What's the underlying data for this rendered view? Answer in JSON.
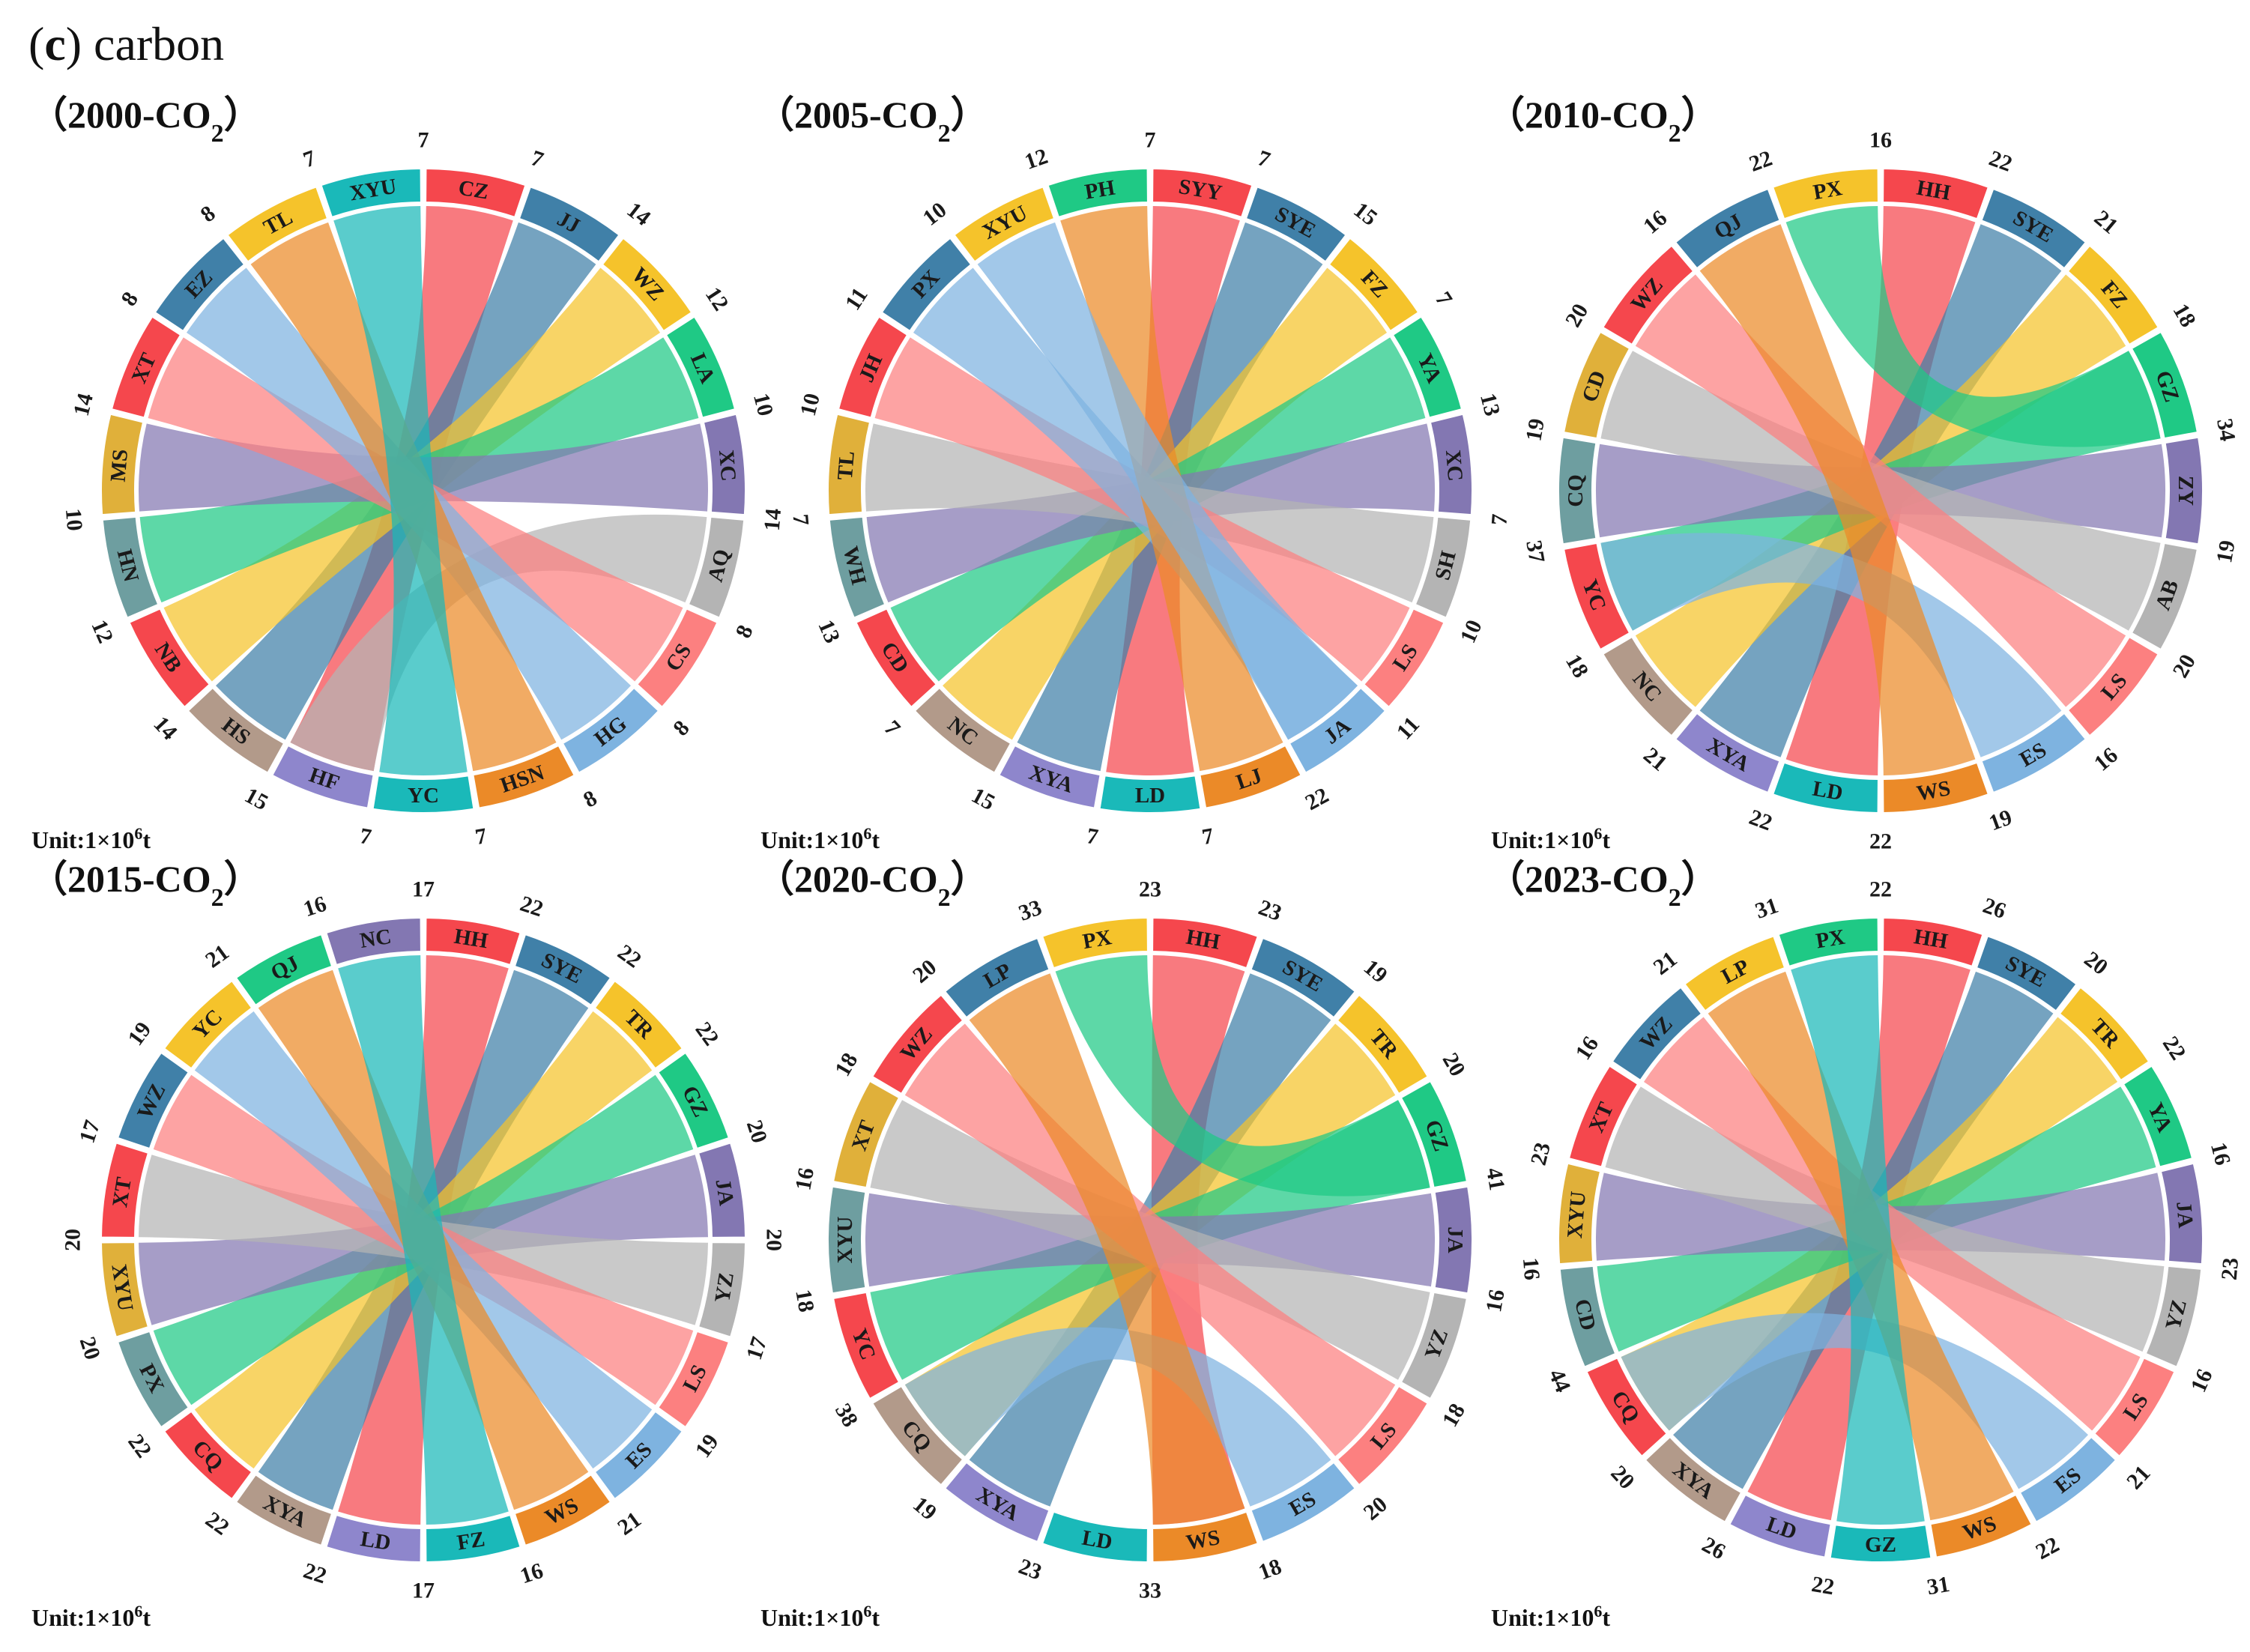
{
  "figure": {
    "label": "c",
    "title": "carbon"
  },
  "colors": {
    "red": "#f5474d",
    "blue": "#4080a8",
    "yellow": "#f5c32b",
    "green": "#1fc985",
    "purple": "#8377b2",
    "gray": "#b4b4b4",
    "pink": "#fc8080",
    "lightblue": "#7eb3e0",
    "orange": "#eb8a28",
    "teal": "#1ab9b9",
    "mustard": "#e0b03a",
    "slate": "#6e9ea0",
    "taupe": "#b29a8a",
    "lavender": "#8e86cc"
  },
  "chart_data": [
    {
      "type": "chord",
      "year": "2000",
      "title_main": "（2000-CO",
      "title_sub": "2",
      "title_close": "）",
      "unit_main": "Unit:1×10",
      "unit_sup": "6",
      "unit_tail": "t",
      "segments": [
        {
          "label": "CZ",
          "value": 7,
          "color": "red"
        },
        {
          "label": "JJ",
          "value": 14,
          "color": "blue"
        },
        {
          "label": "WZ",
          "value": 12,
          "color": "yellow"
        },
        {
          "label": "LA",
          "value": 10,
          "color": "green"
        },
        {
          "label": "XC",
          "value": 14,
          "color": "purple"
        },
        {
          "label": "AQ",
          "value": 8,
          "color": "gray"
        },
        {
          "label": "CS",
          "value": 8,
          "color": "pink"
        },
        {
          "label": "HG",
          "value": 8,
          "color": "lightblue"
        },
        {
          "label": "HSN",
          "value": 7,
          "color": "orange"
        },
        {
          "label": "YC",
          "value": 7,
          "color": "teal"
        },
        {
          "label": "HF",
          "value": 15,
          "color": "lavender"
        },
        {
          "label": "HS",
          "value": 14,
          "color": "taupe"
        },
        {
          "label": "NB",
          "value": 12,
          "color": "red"
        },
        {
          "label": "HN",
          "value": 10,
          "color": "slate"
        },
        {
          "label": "MS",
          "value": 14,
          "color": "mustard"
        },
        {
          "label": "XT",
          "value": 8,
          "color": "red"
        },
        {
          "label": "EZ",
          "value": 8,
          "color": "blue"
        },
        {
          "label": "TL",
          "value": 7,
          "color": "yellow"
        },
        {
          "label": "XYU",
          "value": 7,
          "color": "teal"
        }
      ],
      "links": [
        {
          "from": "CZ",
          "to": "HF",
          "color": "red"
        },
        {
          "from": "JJ",
          "to": "HS",
          "color": "blue"
        },
        {
          "from": "WZ",
          "to": "NB",
          "color": "yellow"
        },
        {
          "from": "LA",
          "to": "HN",
          "color": "green"
        },
        {
          "from": "XC",
          "to": "MS",
          "color": "purple"
        },
        {
          "from": "AQ",
          "to": "HF",
          "color": "gray"
        },
        {
          "from": "CS",
          "to": "XT",
          "color": "pink"
        },
        {
          "from": "HG",
          "to": "EZ",
          "color": "lightblue"
        },
        {
          "from": "HSN",
          "to": "TL",
          "color": "orange"
        },
        {
          "from": "YC",
          "to": "XYU",
          "color": "teal"
        }
      ]
    },
    {
      "type": "chord",
      "year": "2005",
      "title_main": "（2005-CO",
      "title_sub": "2",
      "title_close": "）",
      "unit_main": "Unit:1×10",
      "unit_sup": "6",
      "unit_tail": "t",
      "segments": [
        {
          "label": "SYY",
          "value": 7,
          "color": "red"
        },
        {
          "label": "SYE",
          "value": 15,
          "color": "blue"
        },
        {
          "label": "FZ",
          "value": 7,
          "color": "yellow"
        },
        {
          "label": "YA",
          "value": 13,
          "color": "green"
        },
        {
          "label": "XC",
          "value": 7,
          "color": "purple"
        },
        {
          "label": "SH",
          "value": 10,
          "color": "gray"
        },
        {
          "label": "LS",
          "value": 11,
          "color": "pink"
        },
        {
          "label": "JA",
          "value": 22,
          "color": "lightblue"
        },
        {
          "label": "LJ",
          "value": 7,
          "color": "orange"
        },
        {
          "label": "LD",
          "value": 7,
          "color": "teal"
        },
        {
          "label": "XYA",
          "value": 15,
          "color": "lavender"
        },
        {
          "label": "NC",
          "value": 7,
          "color": "taupe"
        },
        {
          "label": "CD",
          "value": 13,
          "color": "red"
        },
        {
          "label": "WH",
          "value": 7,
          "color": "slate"
        },
        {
          "label": "TL",
          "value": 10,
          "color": "mustard"
        },
        {
          "label": "JH",
          "value": 11,
          "color": "red"
        },
        {
          "label": "PX",
          "value": 10,
          "color": "blue"
        },
        {
          "label": "XYU",
          "value": 12,
          "color": "yellow"
        },
        {
          "label": "PH",
          "value": 7,
          "color": "green"
        }
      ],
      "links": [
        {
          "from": "SYY",
          "to": "LD",
          "color": "red"
        },
        {
          "from": "SYE",
          "to": "XYA",
          "color": "blue"
        },
        {
          "from": "FZ",
          "to": "NC",
          "color": "yellow"
        },
        {
          "from": "YA",
          "to": "CD",
          "color": "green"
        },
        {
          "from": "XC",
          "to": "WH",
          "color": "purple"
        },
        {
          "from": "SH",
          "to": "TL",
          "color": "gray"
        },
        {
          "from": "LS",
          "to": "JH",
          "color": "pink"
        },
        {
          "from": "JA",
          "to": "PX",
          "color": "lightblue"
        },
        {
          "from": "LJ",
          "to": "PH",
          "color": "orange"
        },
        {
          "from": "JA",
          "to": "XYU",
          "color": "lightblue"
        }
      ]
    },
    {
      "type": "chord",
      "year": "2010",
      "title_main": "（2010-CO",
      "title_sub": "2",
      "title_close": "）",
      "unit_main": "Unit:1×10",
      "unit_sup": "6",
      "unit_tail": "t",
      "segments": [
        {
          "label": "HH",
          "value": 22,
          "color": "red"
        },
        {
          "label": "SYE",
          "value": 21,
          "color": "blue"
        },
        {
          "label": "FZ",
          "value": 18,
          "color": "yellow"
        },
        {
          "label": "GZ",
          "value": 34,
          "color": "green"
        },
        {
          "label": "ZY",
          "value": 19,
          "color": "purple"
        },
        {
          "label": "AB",
          "value": 20,
          "color": "gray"
        },
        {
          "label": "LS",
          "value": 16,
          "color": "pink"
        },
        {
          "label": "ES",
          "value": 19,
          "color": "lightblue"
        },
        {
          "label": "WS",
          "value": 22,
          "color": "orange"
        },
        {
          "label": "LD",
          "value": 22,
          "color": "teal"
        },
        {
          "label": "XYA",
          "value": 21,
          "color": "lavender"
        },
        {
          "label": "NC",
          "value": 18,
          "color": "taupe"
        },
        {
          "label": "YC",
          "value": 37,
          "color": "red"
        },
        {
          "label": "CQ",
          "value": 19,
          "color": "slate"
        },
        {
          "label": "CD",
          "value": 20,
          "color": "mustard"
        },
        {
          "label": "WZ",
          "value": 16,
          "color": "red"
        },
        {
          "label": "QJ",
          "value": 22,
          "color": "blue"
        },
        {
          "label": "PX",
          "value": 16,
          "color": "yellow"
        }
      ],
      "links": [
        {
          "from": "HH",
          "to": "LD",
          "color": "red"
        },
        {
          "from": "SYE",
          "to": "XYA",
          "color": "blue"
        },
        {
          "from": "FZ",
          "to": "NC",
          "color": "yellow"
        },
        {
          "from": "GZ",
          "to": "YC",
          "color": "green"
        },
        {
          "from": "ZY",
          "to": "CQ",
          "color": "purple"
        },
        {
          "from": "AB",
          "to": "CD",
          "color": "gray"
        },
        {
          "from": "LS",
          "to": "WZ",
          "color": "pink"
        },
        {
          "from": "ES",
          "to": "YC",
          "color": "lightblue"
        },
        {
          "from": "WS",
          "to": "QJ",
          "color": "orange"
        },
        {
          "from": "PX",
          "to": "GZ",
          "color": "green"
        }
      ]
    },
    {
      "type": "chord",
      "year": "2015",
      "title_main": "（2015-CO",
      "title_sub": "2",
      "title_close": "）",
      "unit_main": "Unit:1×10",
      "unit_sup": "6",
      "unit_tail": "t",
      "segments": [
        {
          "label": "HH",
          "value": 22,
          "color": "red"
        },
        {
          "label": "SYE",
          "value": 22,
          "color": "blue"
        },
        {
          "label": "TR",
          "value": 22,
          "color": "yellow"
        },
        {
          "label": "GZ",
          "value": 20,
          "color": "green"
        },
        {
          "label": "JA",
          "value": 20,
          "color": "purple"
        },
        {
          "label": "YZ",
          "value": 17,
          "color": "gray"
        },
        {
          "label": "LS",
          "value": 19,
          "color": "pink"
        },
        {
          "label": "ES",
          "value": 21,
          "color": "lightblue"
        },
        {
          "label": "WS",
          "value": 16,
          "color": "orange"
        },
        {
          "label": "FZ",
          "value": 17,
          "color": "teal"
        },
        {
          "label": "LD",
          "value": 22,
          "color": "lavender"
        },
        {
          "label": "XYA",
          "value": 22,
          "color": "taupe"
        },
        {
          "label": "CQ",
          "value": 22,
          "color": "red"
        },
        {
          "label": "PX",
          "value": 20,
          "color": "slate"
        },
        {
          "label": "XYU",
          "value": 20,
          "color": "mustard"
        },
        {
          "label": "XT",
          "value": 17,
          "color": "red"
        },
        {
          "label": "WZ",
          "value": 19,
          "color": "blue"
        },
        {
          "label": "YC",
          "value": 21,
          "color": "yellow"
        },
        {
          "label": "QJ",
          "value": 16,
          "color": "green"
        },
        {
          "label": "NC",
          "value": 17,
          "color": "purple"
        }
      ],
      "links": [
        {
          "from": "HH",
          "to": "LD",
          "color": "red"
        },
        {
          "from": "SYE",
          "to": "XYA",
          "color": "blue"
        },
        {
          "from": "TR",
          "to": "CQ",
          "color": "yellow"
        },
        {
          "from": "GZ",
          "to": "PX",
          "color": "green"
        },
        {
          "from": "JA",
          "to": "XYU",
          "color": "purple"
        },
        {
          "from": "YZ",
          "to": "XT",
          "color": "gray"
        },
        {
          "from": "LS",
          "to": "WZ",
          "color": "pink"
        },
        {
          "from": "ES",
          "to": "YC",
          "color": "lightblue"
        },
        {
          "from": "WS",
          "to": "QJ",
          "color": "orange"
        },
        {
          "from": "FZ",
          "to": "NC",
          "color": "teal"
        }
      ]
    },
    {
      "type": "chord",
      "year": "2020",
      "title_main": "（2020-CO",
      "title_sub": "2",
      "title_close": "）",
      "unit_main": "Unit:1×10",
      "unit_sup": "6",
      "unit_tail": "t",
      "segments": [
        {
          "label": "HH",
          "value": 23,
          "color": "red"
        },
        {
          "label": "SYE",
          "value": 19,
          "color": "blue"
        },
        {
          "label": "TR",
          "value": 20,
          "color": "yellow"
        },
        {
          "label": "GZ",
          "value": 41,
          "color": "green"
        },
        {
          "label": "JA",
          "value": 16,
          "color": "purple"
        },
        {
          "label": "YZ",
          "value": 18,
          "color": "gray"
        },
        {
          "label": "LS",
          "value": 20,
          "color": "pink"
        },
        {
          "label": "ES",
          "value": 18,
          "color": "lightblue"
        },
        {
          "label": "WS",
          "value": 33,
          "color": "orange"
        },
        {
          "label": "LD",
          "value": 23,
          "color": "teal"
        },
        {
          "label": "XYA",
          "value": 19,
          "color": "lavender"
        },
        {
          "label": "CQ",
          "value": 38,
          "color": "taupe"
        },
        {
          "label": "YC",
          "value": 18,
          "color": "red"
        },
        {
          "label": "XYU",
          "value": 16,
          "color": "slate"
        },
        {
          "label": "XT",
          "value": 18,
          "color": "mustard"
        },
        {
          "label": "WZ",
          "value": 20,
          "color": "red"
        },
        {
          "label": "LP",
          "value": 33,
          "color": "blue"
        },
        {
          "label": "PX",
          "value": 23,
          "color": "yellow"
        }
      ],
      "links": [
        {
          "from": "HH",
          "to": "WS",
          "color": "red"
        },
        {
          "from": "SYE",
          "to": "XYA",
          "color": "blue"
        },
        {
          "from": "TR",
          "to": "CQ",
          "color": "yellow"
        },
        {
          "from": "GZ",
          "to": "YC",
          "color": "green"
        },
        {
          "from": "JA",
          "to": "XYU",
          "color": "purple"
        },
        {
          "from": "YZ",
          "to": "XT",
          "color": "gray"
        },
        {
          "from": "LS",
          "to": "WZ",
          "color": "pink"
        },
        {
          "from": "ES",
          "to": "CQ",
          "color": "lightblue"
        },
        {
          "from": "WS",
          "to": "LP",
          "color": "orange"
        },
        {
          "from": "PX",
          "to": "GZ",
          "color": "green"
        }
      ]
    },
    {
      "type": "chord",
      "year": "2023",
      "title_main": "（2023-CO",
      "title_sub": "2",
      "title_close": "）",
      "unit_main": "Unit:1×10",
      "unit_sup": "6",
      "unit_tail": "t",
      "segments": [
        {
          "label": "HH",
          "value": 26,
          "color": "red"
        },
        {
          "label": "SYE",
          "value": 20,
          "color": "blue"
        },
        {
          "label": "TR",
          "value": 22,
          "color": "yellow"
        },
        {
          "label": "YA",
          "value": 16,
          "color": "green"
        },
        {
          "label": "JA",
          "value": 23,
          "color": "purple"
        },
        {
          "label": "YZ",
          "value": 16,
          "color": "gray"
        },
        {
          "label": "LS",
          "value": 21,
          "color": "pink"
        },
        {
          "label": "ES",
          "value": 22,
          "color": "lightblue"
        },
        {
          "label": "WS",
          "value": 31,
          "color": "orange"
        },
        {
          "label": "GZ",
          "value": 22,
          "color": "teal"
        },
        {
          "label": "LD",
          "value": 26,
          "color": "lavender"
        },
        {
          "label": "XYA",
          "value": 20,
          "color": "taupe"
        },
        {
          "label": "CQ",
          "value": 44,
          "color": "red"
        },
        {
          "label": "CD",
          "value": 16,
          "color": "slate"
        },
        {
          "label": "XYU",
          "value": 23,
          "color": "mustard"
        },
        {
          "label": "XT",
          "value": 16,
          "color": "red"
        },
        {
          "label": "WZ",
          "value": 21,
          "color": "blue"
        },
        {
          "label": "LP",
          "value": 31,
          "color": "yellow"
        },
        {
          "label": "PX",
          "value": 22,
          "color": "green"
        }
      ],
      "links": [
        {
          "from": "HH",
          "to": "LD",
          "color": "red"
        },
        {
          "from": "SYE",
          "to": "XYA",
          "color": "blue"
        },
        {
          "from": "TR",
          "to": "CQ",
          "color": "yellow"
        },
        {
          "from": "YA",
          "to": "CD",
          "color": "green"
        },
        {
          "from": "JA",
          "to": "XYU",
          "color": "purple"
        },
        {
          "from": "YZ",
          "to": "XT",
          "color": "gray"
        },
        {
          "from": "LS",
          "to": "WZ",
          "color": "pink"
        },
        {
          "from": "ES",
          "to": "CQ",
          "color": "lightblue"
        },
        {
          "from": "WS",
          "to": "LP",
          "color": "orange"
        },
        {
          "from": "GZ",
          "to": "PX",
          "color": "teal"
        }
      ]
    }
  ]
}
